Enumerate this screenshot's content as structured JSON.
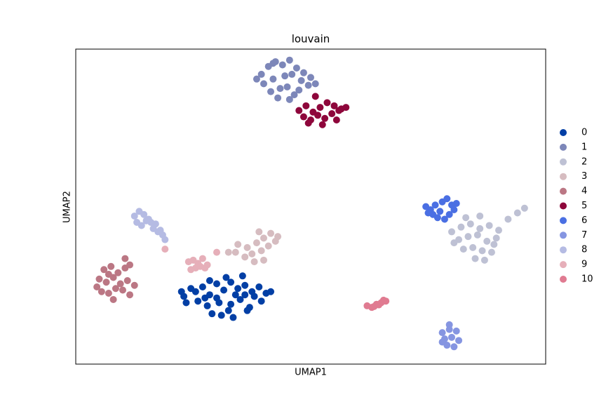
{
  "chart_data": {
    "type": "scatter",
    "title": "louvain",
    "x_label": "UMAP1",
    "y_label": "UMAP2",
    "xlim": [
      0,
      100
    ],
    "ylim": [
      0,
      100
    ],
    "grid": false,
    "legend": "right",
    "series": [
      {
        "name": "0",
        "color": "#023fa5",
        "x": [
          23.0,
          25.5,
          27.0,
          28.5,
          30.0,
          31.5,
          33.0,
          34.5,
          36.0,
          37.5,
          39.0,
          40.5,
          26.0,
          28.0,
          30.5,
          32.5,
          35.0,
          37.0,
          39.5,
          29.0,
          31.0,
          33.5,
          36.5,
          27.5,
          34.0,
          38.0,
          24.5,
          32.0,
          35.5,
          41.5,
          30.0,
          33.0,
          36.0,
          22.5,
          23.5,
          28.5
        ],
        "y": [
          21.5,
          23.0,
          24.5,
          22.0,
          25.5,
          23.5,
          26.0,
          24.0,
          25.0,
          23.0,
          24.5,
          22.5,
          20.0,
          18.5,
          19.5,
          17.0,
          20.5,
          18.0,
          20.0,
          16.0,
          15.5,
          14.8,
          17.0,
          21.0,
          22.0,
          21.5,
          24.0,
          27.5,
          28.0,
          23.0,
          21.0,
          19.0,
          22.0,
          23.0,
          19.5,
          26.5
        ]
      },
      {
        "name": "1",
        "color": "#7d87b9",
        "x": [
          39.5,
          41.0,
          42.5,
          44.0,
          45.5,
          47.0,
          48.5,
          40.0,
          42.0,
          44.5,
          46.0,
          48.0,
          50.0,
          41.5,
          43.5,
          45.0,
          47.5,
          49.5,
          43.0,
          45.5,
          38.5,
          51.0,
          42.0,
          46.5
        ],
        "y": [
          92.0,
          94.5,
          96.0,
          95.0,
          96.5,
          94.0,
          92.5,
          89.0,
          90.5,
          91.5,
          92.0,
          90.0,
          91.0,
          86.5,
          87.5,
          88.0,
          87.0,
          88.5,
          84.5,
          84.0,
          90.5,
          89.0,
          95.5,
          85.5
        ]
      },
      {
        "name": "2",
        "color": "#bec1d4",
        "x": [
          80.0,
          82.0,
          84.0,
          86.0,
          88.0,
          90.0,
          81.5,
          83.5,
          85.5,
          87.5,
          89.5,
          82.5,
          84.5,
          86.5,
          88.5,
          85.0,
          87.0,
          92.0,
          94.0,
          95.5,
          83.0,
          89.0,
          80.5,
          86.0
        ],
        "y": [
          42.0,
          43.5,
          44.5,
          43.0,
          44.0,
          42.5,
          39.5,
          40.5,
          41.0,
          39.0,
          40.0,
          36.5,
          37.0,
          36.0,
          35.5,
          33.5,
          33.0,
          46.0,
          48.0,
          49.5,
          46.5,
          38.0,
          38.5,
          47.0
        ]
      },
      {
        "name": "3",
        "color": "#d6bcc0",
        "x": [
          34.5,
          36.5,
          38.5,
          40.0,
          41.5,
          43.0,
          37.5,
          39.5,
          41.0,
          42.5,
          38.0,
          40.0,
          36.0,
          34.0,
          39.0,
          32.5
        ],
        "y": [
          38.0,
          37.0,
          38.5,
          40.0,
          41.5,
          40.5,
          35.0,
          36.0,
          37.5,
          39.0,
          32.5,
          33.0,
          34.0,
          35.5,
          42.0,
          35.5
        ]
      },
      {
        "name": "4",
        "color": "#bb7784",
        "x": [
          5.0,
          6.5,
          8.0,
          9.5,
          11.0,
          12.5,
          5.5,
          7.0,
          8.5,
          10.0,
          11.5,
          6.0,
          7.5,
          9.0,
          10.5,
          8.0,
          10.5,
          11.5,
          4.5,
          7.0
        ],
        "y": [
          27.0,
          26.0,
          27.5,
          25.5,
          26.5,
          25.0,
          23.0,
          22.5,
          24.0,
          23.5,
          22.0,
          30.0,
          31.0,
          29.0,
          30.5,
          20.5,
          33.5,
          31.5,
          24.5,
          28.5
        ]
      },
      {
        "name": "5",
        "color": "#8e063b",
        "x": [
          47.5,
          49.0,
          50.5,
          52.0,
          53.5,
          55.0,
          56.5,
          48.5,
          50.0,
          51.5,
          53.0,
          54.5,
          56.0,
          49.5,
          52.5,
          55.5,
          51.0,
          57.5
        ],
        "y": [
          80.5,
          82.0,
          80.0,
          81.5,
          83.0,
          82.0,
          81.0,
          78.5,
          77.5,
          79.0,
          78.0,
          79.5,
          80.5,
          76.5,
          76.0,
          77.5,
          85.0,
          81.5
        ]
      },
      {
        "name": "6",
        "color": "#4a6fe3",
        "x": [
          74.5,
          75.5,
          76.5,
          77.5,
          78.0,
          79.0,
          80.0,
          80.5,
          76.0,
          77.0,
          79.5,
          81.0,
          75.0,
          78.5
        ],
        "y": [
          50.0,
          49.0,
          50.5,
          48.5,
          51.5,
          52.5,
          50.5,
          49.0,
          47.5,
          46.5,
          47.5,
          51.0,
          48.0,
          46.0
        ]
      },
      {
        "name": "7",
        "color": "#8595e1",
        "x": [
          78.0,
          79.5,
          81.0,
          78.5,
          80.0,
          81.5,
          79.0,
          80.5,
          79.5,
          78.0
        ],
        "y": [
          10.0,
          11.0,
          10.5,
          8.0,
          8.5,
          7.5,
          6.0,
          5.5,
          12.5,
          7.0
        ]
      },
      {
        "name": "8",
        "color": "#b5bbe3",
        "x": [
          12.5,
          13.5,
          14.5,
          15.5,
          16.0,
          17.0,
          18.0,
          14.0,
          15.0,
          16.5,
          17.5,
          13.0,
          18.5,
          19.0
        ],
        "y": [
          47.0,
          48.5,
          47.5,
          46.0,
          45.0,
          44.5,
          42.5,
          44.0,
          45.5,
          43.0,
          42.0,
          45.0,
          41.0,
          39.5
        ]
      },
      {
        "name": "9",
        "color": "#e6afb9",
        "x": [
          24.0,
          25.0,
          26.0,
          27.0,
          28.0,
          25.5,
          26.5,
          24.5,
          27.5,
          30.0,
          19.0
        ],
        "y": [
          32.5,
          33.0,
          32.0,
          33.5,
          31.5,
          30.5,
          31.0,
          30.0,
          30.5,
          35.5,
          36.5
        ]
      },
      {
        "name": "10",
        "color": "#e07b91",
        "x": [
          62.0,
          63.0,
          64.0,
          65.0,
          66.0,
          63.5,
          64.5,
          65.5
        ],
        "y": [
          18.5,
          18.0,
          19.0,
          19.5,
          20.0,
          18.3,
          18.8,
          20.3
        ]
      }
    ]
  }
}
